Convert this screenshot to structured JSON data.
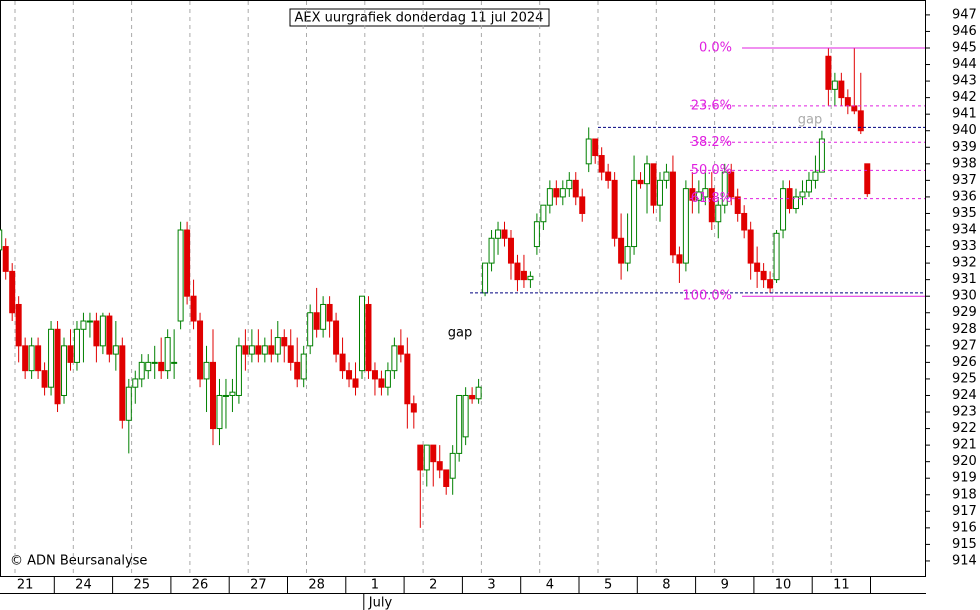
{
  "chart_data": {
    "type": "candlestick",
    "title": "AEX uurgrafiek donderdag 11 jul 2024",
    "copyright": "© ADN Beursanalyse",
    "ylim": [
      913.03,
      947.9
    ],
    "yticks": [
      914,
      915,
      916,
      917,
      918,
      919,
      920,
      921,
      922,
      923,
      924,
      925,
      926,
      927,
      928,
      929,
      930,
      931,
      932,
      933,
      934,
      935,
      936,
      937,
      938,
      939,
      940,
      941,
      942,
      943,
      944,
      945,
      946,
      947
    ],
    "colors": {
      "up": "#008000",
      "down": "#e00000",
      "fib": "#e020e0",
      "gap": "#000080"
    },
    "days": [
      {
        "label": "21",
        "candles": [
          [
            932.8,
            934.2,
            931.5,
            934
          ],
          [
            933,
            933.5,
            931,
            931.5
          ],
          [
            931.5,
            932,
            928.5,
            929
          ],
          [
            929.5,
            930,
            926,
            927
          ],
          [
            927,
            927.5,
            925,
            925.5
          ],
          [
            925.5,
            927.5,
            925,
            927
          ],
          [
            927,
            927.5,
            925,
            925.5
          ],
          [
            925.5,
            926,
            924,
            924.5
          ],
          [
            924.5,
            928.5,
            924,
            928
          ]
        ]
      },
      {
        "label": "24",
        "candles": [
          [
            928,
            928.5,
            923,
            923.5
          ],
          [
            924,
            927.5,
            923.5,
            927
          ],
          [
            927,
            928,
            925.5,
            926
          ],
          [
            926,
            928.5,
            925.5,
            928
          ],
          [
            928,
            929,
            926,
            928.5
          ],
          [
            928.5,
            929,
            927.5,
            928.5
          ],
          [
            928.5,
            929,
            926,
            927
          ],
          [
            927,
            929,
            926.5,
            928.8
          ],
          [
            928.8,
            929,
            926,
            926.5
          ]
        ]
      },
      {
        "label": "25",
        "candles": [
          [
            926.5,
            928.5,
            925.5,
            927
          ],
          [
            927,
            927.5,
            922,
            922.5
          ],
          [
            922.5,
            925,
            920.5,
            924.5
          ],
          [
            924.5,
            925.5,
            923.5,
            925
          ],
          [
            925,
            926.5,
            924.5,
            926
          ],
          [
            925.5,
            926.5,
            925,
            926
          ],
          [
            926,
            927,
            925,
            926
          ],
          [
            926,
            927.5,
            925,
            925.5
          ],
          [
            925.5,
            928,
            925,
            927.5
          ]
        ]
      },
      {
        "label": "26",
        "candles": [
          [
            926,
            928,
            925,
            926
          ],
          [
            928.5,
            934.5,
            928,
            934
          ],
          [
            934,
            934.5,
            929.5,
            930
          ],
          [
            930,
            931,
            928,
            928.5
          ],
          [
            928.5,
            929,
            924.5,
            925
          ],
          [
            925,
            927,
            923,
            926
          ],
          [
            926,
            928,
            921,
            922
          ],
          [
            922,
            925,
            921,
            924
          ],
          [
            924,
            925,
            922,
            924
          ]
        ]
      },
      {
        "label": "27",
        "candles": [
          [
            924,
            925,
            923,
            924.2
          ],
          [
            924,
            927.5,
            923.5,
            927
          ],
          [
            927,
            928,
            925.5,
            926.5
          ],
          [
            926.5,
            928,
            926,
            927
          ],
          [
            927,
            928,
            926,
            926.5
          ],
          [
            926.5,
            927.5,
            926,
            927
          ],
          [
            927,
            928,
            926,
            926.5
          ],
          [
            926.5,
            928.5,
            926,
            927.5
          ],
          [
            927.5,
            928,
            926,
            927
          ]
        ]
      },
      {
        "label": "28",
        "candles": [
          [
            927,
            928,
            925.5,
            926
          ],
          [
            926,
            927.5,
            924.5,
            925
          ],
          [
            925,
            927,
            924.5,
            926.5
          ],
          [
            927,
            929.5,
            926.5,
            929
          ],
          [
            929,
            930.5,
            927.5,
            928
          ],
          [
            928,
            930,
            927.5,
            929.5
          ],
          [
            929.5,
            930,
            927.5,
            928.5
          ],
          [
            928.5,
            929,
            926,
            926.5
          ],
          [
            926.5,
            927.5,
            925,
            925.5
          ]
        ]
      },
      {
        "label": "1",
        "month": "July",
        "candles": [
          [
            925.5,
            926,
            924.5,
            925
          ],
          [
            925,
            926,
            924,
            924.5
          ],
          [
            925.5,
            930,
            925,
            930
          ],
          [
            929.5,
            930,
            925,
            925.5
          ],
          [
            925.5,
            926,
            924,
            925
          ],
          [
            925,
            925.5,
            924,
            924.5
          ],
          [
            924.5,
            926,
            924,
            925.5
          ],
          [
            925.5,
            927.5,
            925,
            927
          ],
          [
            927,
            928,
            926,
            926.5
          ]
        ]
      },
      {
        "label": "2",
        "candles": [
          [
            926.5,
            927.5,
            922,
            923.5
          ],
          [
            923.5,
            924,
            922,
            923
          ],
          [
            921,
            921,
            916,
            919.5
          ],
          [
            919.5,
            921,
            918.5,
            921
          ],
          [
            921,
            921,
            918.5,
            920
          ],
          [
            920,
            921,
            919,
            919.5
          ],
          [
            919.5,
            919.5,
            918,
            918.5
          ],
          [
            919,
            921,
            918,
            920.5
          ],
          [
            920.5,
            924,
            920,
            924
          ]
        ]
      },
      {
        "label": "3",
        "candles": [
          [
            921.5,
            924.5,
            921,
            924
          ],
          [
            924,
            924.5,
            923.5,
            923.8
          ],
          [
            923.8,
            925,
            923.5,
            924.5
          ],
          [
            930.2,
            932,
            930,
            932
          ],
          [
            932,
            934,
            931.5,
            933.5
          ],
          [
            933.5,
            934.5,
            932.5,
            934
          ],
          [
            934,
            934.5,
            933,
            933.5
          ],
          [
            933.5,
            934,
            931,
            932
          ],
          [
            932,
            932.5,
            930.3,
            931
          ]
        ]
      },
      {
        "label": "4",
        "candles": [
          [
            931.5,
            932.5,
            930.5,
            931
          ],
          [
            931,
            931.5,
            930.5,
            931.2
          ],
          [
            933,
            935,
            932.5,
            934.5
          ],
          [
            934.5,
            935.5,
            934,
            935.5
          ],
          [
            935.5,
            937,
            935,
            936.5
          ],
          [
            936.5,
            937,
            935.5,
            936
          ],
          [
            936,
            937,
            935.5,
            936.5
          ],
          [
            936.5,
            937.5,
            936,
            937
          ],
          [
            937,
            937.5,
            935.5,
            936
          ]
        ]
      },
      {
        "label": "5",
        "candles": [
          [
            936,
            936.5,
            934.5,
            935
          ],
          [
            938,
            940.2,
            937.5,
            939.5
          ],
          [
            939.5,
            939.5,
            938,
            938.5
          ],
          [
            938.5,
            939,
            937,
            937.5
          ],
          [
            937.5,
            938,
            936.5,
            937
          ],
          [
            937,
            937.5,
            933,
            933.5
          ],
          [
            933.5,
            935,
            931,
            932
          ],
          [
            932,
            935,
            931.5,
            933
          ],
          [
            933,
            938.5,
            932.5,
            937
          ]
        ]
      },
      {
        "label": "8",
        "candles": [
          [
            937,
            937.5,
            936.5,
            936.8
          ],
          [
            936.8,
            938.5,
            935,
            938
          ],
          [
            938,
            938,
            935,
            935.5
          ],
          [
            935.5,
            937.5,
            934.5,
            937
          ],
          [
            937,
            938,
            936.5,
            937.5
          ],
          [
            937.5,
            938.5,
            932,
            932.5
          ],
          [
            932.5,
            933,
            930.8,
            932
          ],
          [
            932,
            937,
            931.5,
            936.5
          ],
          [
            936.5,
            937.5,
            935,
            935.8
          ]
        ]
      },
      {
        "label": "9",
        "candles": [
          [
            935.8,
            937,
            935,
            936.3
          ],
          [
            936,
            937.5,
            935.5,
            936.5
          ],
          [
            936.5,
            937.5,
            934,
            934.5
          ],
          [
            934.5,
            936,
            933.5,
            935.5
          ],
          [
            935.5,
            938,
            935,
            937.5
          ],
          [
            937.5,
            938,
            935.5,
            936
          ],
          [
            936,
            936.5,
            934.5,
            935
          ],
          [
            935,
            935.5,
            933.5,
            934
          ],
          [
            934,
            934.5,
            931,
            932
          ]
        ]
      },
      {
        "label": "10",
        "candles": [
          [
            932,
            933,
            930.5,
            931.5
          ],
          [
            931.5,
            932,
            930.5,
            931
          ],
          [
            931,
            931.5,
            930.2,
            930.5
          ],
          [
            931,
            934,
            930.8,
            933.8
          ],
          [
            934,
            937,
            933.5,
            936.5
          ],
          [
            936.5,
            937,
            935,
            935.3
          ],
          [
            935.3,
            936.5,
            935,
            936
          ],
          [
            936,
            937,
            935.5,
            936.3
          ],
          [
            936.3,
            937.5,
            936,
            937
          ]
        ]
      },
      {
        "label": "11",
        "candles": [
          [
            937,
            938.5,
            936.5,
            937.5
          ],
          [
            937.5,
            940,
            937.5,
            939.5
          ],
          [
            944.5,
            945,
            941.5,
            942.5
          ],
          [
            942.5,
            943.5,
            941.5,
            943
          ],
          [
            943,
            943.5,
            941.5,
            942
          ],
          [
            942,
            942.5,
            941,
            941.5
          ],
          [
            941.5,
            945,
            941,
            941.2
          ],
          [
            941.2,
            943.5,
            939.8,
            940
          ],
          [
            938,
            938,
            936,
            936.2
          ]
        ]
      }
    ],
    "fibonacci": [
      {
        "label": "0.0%",
        "price": 945
      },
      {
        "label": "23.6%",
        "price": 941.5
      },
      {
        "label": "38.2%",
        "price": 939.3
      },
      {
        "label": "50.0%",
        "price": 937.6
      },
      {
        "label": "61.8%",
        "price": 935.9
      },
      {
        "label": "100.0%",
        "price": 930
      }
    ],
    "gaps": [
      {
        "label": "gap",
        "price": 930.2
      },
      {
        "label": "gap",
        "price": 940.2
      }
    ]
  }
}
